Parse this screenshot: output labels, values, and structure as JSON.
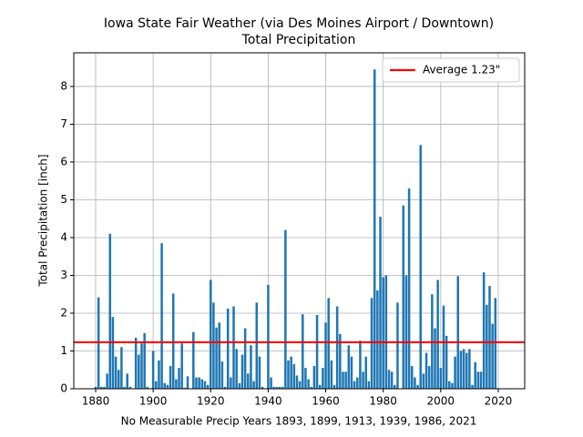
{
  "chart_data": {
    "type": "bar",
    "title": "Iowa State Fair Weather (via Des Moines Airport / Downtown)",
    "subtitle": "Total Precipitation",
    "xlabel": "No Measurable Precip Years 1893, 1899, 1913, 1939, 1986, 2021",
    "ylabel": "Total Precipitation [inch]",
    "color": "#1f77b4",
    "x": [
      1880,
      1881,
      1882,
      1883,
      1884,
      1885,
      1886,
      1887,
      1888,
      1889,
      1890,
      1891,
      1892,
      1893,
      1894,
      1895,
      1896,
      1897,
      1898,
      1899,
      1900,
      1901,
      1902,
      1903,
      1904,
      1905,
      1906,
      1907,
      1908,
      1909,
      1910,
      1911,
      1912,
      1913,
      1914,
      1915,
      1916,
      1917,
      1918,
      1919,
      1920,
      1921,
      1922,
      1923,
      1924,
      1925,
      1926,
      1927,
      1928,
      1929,
      1930,
      1931,
      1932,
      1933,
      1934,
      1935,
      1936,
      1937,
      1938,
      1939,
      1940,
      1941,
      1942,
      1943,
      1944,
      1945,
      1946,
      1947,
      1948,
      1949,
      1950,
      1951,
      1952,
      1953,
      1954,
      1955,
      1956,
      1957,
      1958,
      1959,
      1960,
      1961,
      1962,
      1963,
      1964,
      1965,
      1966,
      1967,
      1968,
      1969,
      1970,
      1971,
      1972,
      1973,
      1974,
      1975,
      1976,
      1977,
      1978,
      1979,
      1980,
      1981,
      1982,
      1983,
      1984,
      1985,
      1986,
      1987,
      1988,
      1989,
      1990,
      1991,
      1992,
      1993,
      1994,
      1995,
      1996,
      1997,
      1998,
      1999,
      2000,
      2001,
      2002,
      2003,
      2004,
      2005,
      2006,
      2007,
      2008,
      2009,
      2010,
      2011,
      2012,
      2013,
      2014,
      2015,
      2016,
      2017,
      2018,
      2019
    ],
    "values": [
      0.05,
      2.42,
      0.05,
      0.05,
      0.4,
      4.1,
      1.9,
      0.85,
      0.5,
      1.1,
      0.05,
      0.4,
      0.05,
      null,
      1.35,
      0.9,
      1.2,
      1.47,
      0.05,
      null,
      1.0,
      0.2,
      0.75,
      3.85,
      0.15,
      0.1,
      0.6,
      2.52,
      0.25,
      0.55,
      1.2,
      0.03,
      0.33,
      null,
      1.5,
      0.3,
      0.3,
      0.25,
      0.2,
      0.1,
      2.88,
      2.28,
      1.62,
      1.75,
      0.72,
      0.05,
      2.12,
      0.3,
      2.18,
      1.05,
      0.15,
      0.9,
      1.6,
      0.4,
      1.15,
      0.2,
      2.28,
      0.85,
      0.05,
      null,
      2.75,
      0.3,
      0.05,
      0.05,
      0.05,
      0.05,
      4.2,
      0.75,
      0.85,
      0.65,
      0.35,
      0.2,
      1.97,
      0.55,
      0.25,
      0.05,
      0.6,
      1.95,
      0.1,
      0.55,
      1.75,
      2.4,
      0.75,
      0.1,
      2.18,
      1.45,
      0.45,
      0.45,
      1.15,
      0.85,
      0.2,
      0.3,
      1.27,
      0.45,
      0.85,
      0.2,
      2.4,
      8.45,
      2.6,
      4.55,
      2.95,
      3.0,
      0.5,
      0.45,
      0.1,
      2.28,
      null,
      4.85,
      3.0,
      5.3,
      0.6,
      0.3,
      0.1,
      6.45,
      0.4,
      0.95,
      0.6,
      2.5,
      1.6,
      2.88,
      0.55,
      2.2,
      1.4,
      0.2,
      0.15,
      0.85,
      2.98,
      1.0,
      1.05,
      0.95,
      1.05,
      0.1,
      0.7,
      0.45,
      0.45,
      3.08,
      2.22,
      2.72,
      1.72,
      2.4
    ],
    "average": {
      "value": 1.23,
      "label": "Average 1.23\"",
      "color": "#ff0000"
    },
    "xlim": [
      1872.4,
      2029.2
    ],
    "xticks": [
      1880,
      1900,
      1920,
      1940,
      1960,
      1980,
      2000,
      2020
    ],
    "ylim": [
      0,
      8.89
    ],
    "yticks": [
      0,
      1,
      2,
      3,
      4,
      5,
      6,
      7,
      8
    ],
    "grid": true,
    "legend": "upper right"
  }
}
